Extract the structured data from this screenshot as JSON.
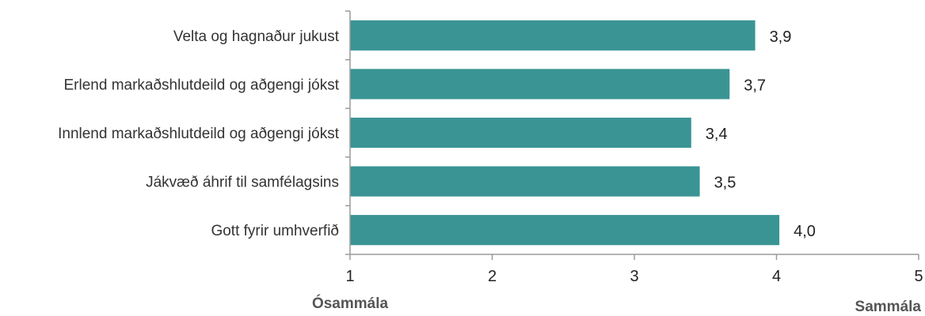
{
  "chart_data": {
    "type": "bar",
    "orientation": "horizontal",
    "categories": [
      "Velta og hagnaður jukust",
      "Erlend markaðshlutdeild og aðgengi jókst",
      "Innlend markaðshlutdeild og aðgengi jókst",
      "Jákvæð áhrif til samfélagsins",
      "Gott fyrir umhverfið"
    ],
    "values": [
      3.85,
      3.67,
      3.4,
      3.46,
      4.02
    ],
    "data_labels": [
      "3,9",
      "3,7",
      "3,4",
      "3,5",
      "4,0"
    ],
    "xlim": [
      1,
      5
    ],
    "ticks": [
      1,
      2,
      3,
      4,
      5
    ],
    "tick_labels": [
      "1",
      "2",
      "3",
      "4",
      "5"
    ],
    "x_left_label": "Ósammála",
    "x_right_label": "Sammála",
    "bar_color": "#3a9494",
    "grid": false,
    "legend": "none"
  }
}
